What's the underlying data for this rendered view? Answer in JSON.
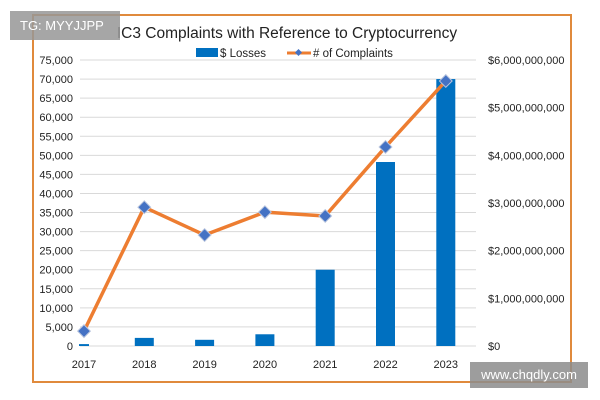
{
  "chart_data": {
    "type": "bar+line",
    "title": "IC3 Complaints with Reference to Cryptocurrency",
    "categories": [
      "2017",
      "2018",
      "2019",
      "2020",
      "2021",
      "2022",
      "2023"
    ],
    "series": [
      {
        "name": "$ Losses",
        "type": "bar",
        "axis": "right",
        "color": "#0070C0",
        "values": [
          40000000,
          170000000,
          130000000,
          246000000,
          1600000000,
          3860000000,
          5600000000
        ]
      },
      {
        "name": "# of Complaints",
        "type": "line",
        "axis": "left",
        "color": "#ED7D31",
        "marker_color": "#4472C4",
        "values": [
          3900,
          36400,
          29100,
          35100,
          34100,
          52200,
          69500
        ]
      }
    ],
    "left_axis": {
      "ylim": [
        0,
        75000
      ],
      "ticks": [
        "0",
        "5,000",
        "10,000",
        "15,000",
        "20,000",
        "25,000",
        "30,000",
        "35,000",
        "40,000",
        "45,000",
        "50,000",
        "55,000",
        "60,000",
        "65,000",
        "70,000",
        "75,000"
      ]
    },
    "right_axis": {
      "ylim": [
        0,
        6000000000
      ],
      "ticks": [
        "$0",
        "$1,000,000,000",
        "$2,000,000,000",
        "$3,000,000,000",
        "$4,000,000,000",
        "$5,000,000,000",
        "$6,000,000,000"
      ]
    },
    "legend": "top",
    "grid": true
  },
  "watermarks": {
    "top_left": "TG: MYYJJPP",
    "bottom_right": "www.chqdly.com"
  }
}
